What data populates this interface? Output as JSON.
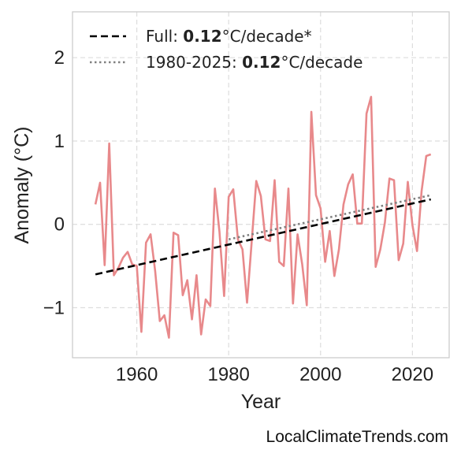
{
  "chart_data": {
    "type": "line",
    "xlabel": "Year",
    "ylabel": "Anomaly (°C)",
    "xlim": [
      1946,
      2028
    ],
    "ylim": [
      -1.6,
      2.55
    ],
    "xticks": [
      1960,
      1980,
      2000,
      2020
    ],
    "yticks": [
      -1,
      0,
      1,
      2
    ],
    "ytick_labels": [
      "−1",
      "0",
      "1",
      "2"
    ],
    "grid": true,
    "legend_position": "top-left",
    "series": [
      {
        "color": "#e8898b",
        "x": [
          1951,
          1952,
          1953,
          1954,
          1955,
          1956,
          1957,
          1958,
          1959,
          1960,
          1961,
          1962,
          1963,
          1964,
          1965,
          1966,
          1967,
          1968,
          1969,
          1970,
          1971,
          1972,
          1973,
          1974,
          1975,
          1976,
          1977,
          1978,
          1979,
          1980,
          1981,
          1982,
          1983,
          1984,
          1985,
          1986,
          1987,
          1988,
          1989,
          1990,
          1991,
          1992,
          1993,
          1994,
          1995,
          1996,
          1997,
          1998,
          1999,
          2000,
          2001,
          2002,
          2003,
          2004,
          2005,
          2006,
          2007,
          2008,
          2009,
          2010,
          2011,
          2012,
          2013,
          2014,
          2015,
          2016,
          2017,
          2018,
          2019,
          2020,
          2021,
          2022,
          2023,
          2024
        ],
        "y": [
          0.24,
          0.5,
          -0.49,
          0.97,
          -0.61,
          -0.52,
          -0.4,
          -0.33,
          -0.48,
          -0.5,
          -1.29,
          -0.22,
          -0.12,
          -0.56,
          -1.16,
          -1.09,
          -1.36,
          -0.1,
          -0.13,
          -0.85,
          -0.67,
          -1.14,
          -0.61,
          -1.32,
          -0.9,
          -0.98,
          0.43,
          -0.09,
          -0.86,
          0.33,
          0.42,
          -0.18,
          -0.3,
          -0.94,
          -0.22,
          0.52,
          0.34,
          -0.18,
          -0.2,
          0.53,
          -0.45,
          -0.5,
          0.43,
          -0.95,
          -0.12,
          -0.48,
          -0.97,
          1.35,
          0.35,
          0.19,
          -0.45,
          -0.08,
          -0.62,
          -0.3,
          0.24,
          0.48,
          0.6,
          0.01,
          0.01,
          1.33,
          1.53,
          -0.51,
          -0.3,
          0.02,
          0.55,
          0.53,
          -0.43,
          -0.23,
          0.51,
          -0.01,
          -0.32,
          0.4,
          0.82,
          0.84
        ]
      }
    ],
    "trends": [
      {
        "label_prefix": "Full: ",
        "value": "0.12",
        "label_suffix": "°C/decade*",
        "style": "dashed",
        "color": "#000000",
        "x": [
          1951,
          2024
        ],
        "y": [
          -0.6,
          0.3
        ]
      },
      {
        "label_prefix": "1980-2025: ",
        "value": "0.12",
        "label_suffix": "°C/decade",
        "style": "dotted",
        "color": "#808080",
        "x": [
          1980,
          2024
        ],
        "y": [
          -0.18,
          0.35
        ]
      }
    ]
  },
  "watermark": "LocalClimateTrends.com"
}
